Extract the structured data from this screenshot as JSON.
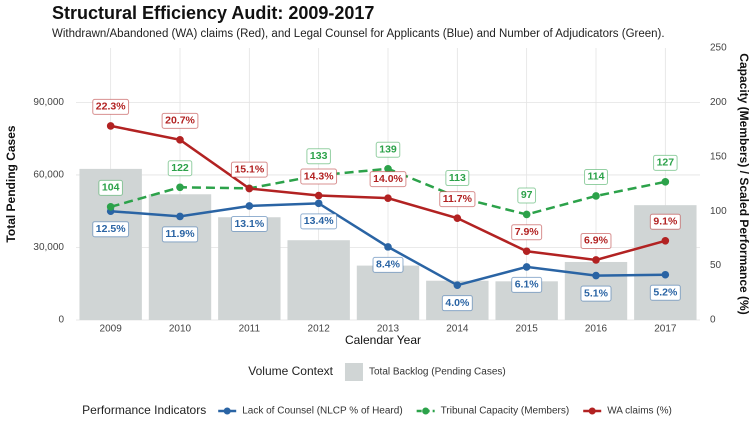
{
  "chart_data": {
    "type": "bar",
    "title": "Structural Efficiency Audit: 2009-2017",
    "subtitle": "Withdrawn/Abandoned (WA) claims (Red), and Legal Counsel for Applicants (Blue) and Number of Adjudicators (Green).",
    "x_label": "Calendar Year",
    "y_label": "Total Pending Cases",
    "y2_label": "Capacity (Members) / Scaled Performance (%)",
    "categories": [
      "2009",
      "2010",
      "2011",
      "2012",
      "2013",
      "2014",
      "2015",
      "2016",
      "2017"
    ],
    "ylim": [
      0,
      112500
    ],
    "yticks": [
      0,
      {
        "value": 30000,
        "label": "30,000"
      },
      {
        "value": 60000,
        "label": "60,000"
      },
      {
        "value": 90000,
        "label": "90,000"
      }
    ],
    "y2lim": [
      0,
      250
    ],
    "y2ticks": [
      0,
      50,
      100,
      150,
      200,
      250
    ],
    "grid": true,
    "legend_groups": [
      {
        "title": "Volume Context",
        "series": [
          0
        ]
      },
      {
        "title": "Performance Indicators",
        "series": [
          1,
          2,
          3
        ]
      }
    ],
    "series": [
      {
        "name": "Total Backlog (Pending Cases)",
        "type": "bar",
        "color": "#d0d5d5",
        "values": [
          62500,
          52000,
          42500,
          33000,
          22500,
          16250,
          16000,
          24000,
          47500
        ]
      },
      {
        "name": "Lack of Counsel (NLCP % of Heard)",
        "type": "line",
        "axis": "y2",
        "color": "#2a64a4",
        "values": [
          100,
          95.2,
          104.8,
          107.2,
          67.2,
          32,
          48.8,
          40.8,
          41.6
        ],
        "value_labels": [
          "12.5%",
          "11.9%",
          "13.1%",
          "13.4%",
          "8.4%",
          "4.0%",
          "6.1%",
          "5.1%",
          "5.2%"
        ],
        "label_side": "below"
      },
      {
        "name": "Tribunal Capacity (Members)",
        "type": "line",
        "axis": "y2",
        "color": "#2ca24a",
        "dashed": true,
        "values": [
          104,
          122,
          121,
          133,
          139,
          113,
          97,
          114,
          127
        ],
        "value_labels": [
          "104",
          "122",
          null,
          "133",
          "139",
          "113",
          "97",
          "114",
          "127"
        ],
        "label_side": "above"
      },
      {
        "name": "WA claims (%)",
        "type": "line",
        "axis": "y2",
        "color": "#b22222",
        "values": [
          178.4,
          165.6,
          120.8,
          114.4,
          112,
          93.6,
          63.2,
          55.2,
          72.8
        ],
        "value_labels": [
          "22.3%",
          "20.7%",
          "15.1%",
          "14.3%",
          "14.0%",
          "11.7%",
          "7.9%",
          "6.9%",
          "9.1%"
        ],
        "label_side": "above"
      }
    ]
  }
}
